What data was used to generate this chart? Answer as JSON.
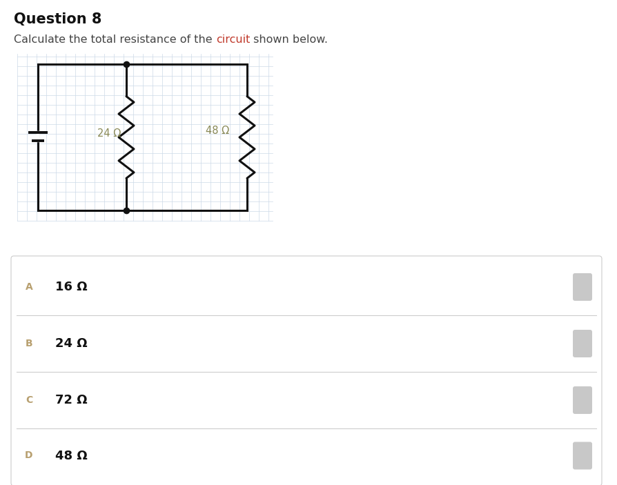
{
  "title": "Question 8",
  "subtitle_parts": [
    {
      "text": "Calculate the total resistance of the ",
      "color": "#444444"
    },
    {
      "text": "circuit",
      "color": "#c0392b"
    },
    {
      "text": " shown below.",
      "color": "#444444"
    }
  ],
  "resistor1_label": "24 Ω",
  "resistor2_label": "48 Ω",
  "options": [
    {
      "letter": "A",
      "text": "16 Ω"
    },
    {
      "letter": "B",
      "text": "24 Ω"
    },
    {
      "letter": "C",
      "text": "72 Ω"
    },
    {
      "letter": "D",
      "text": "48 Ω"
    }
  ],
  "bg_color": "#ffffff",
  "grid_color": "#ccd9e8",
  "circuit_line_color": "#111111",
  "option_letter_color": "#b8a070",
  "option_text_color": "#111111",
  "option_bg": "#ffffff",
  "option_border": "#dddddd",
  "radio_color": "#c8c8c8",
  "circuit_lw": 2.2,
  "res_label_color": "#888855"
}
